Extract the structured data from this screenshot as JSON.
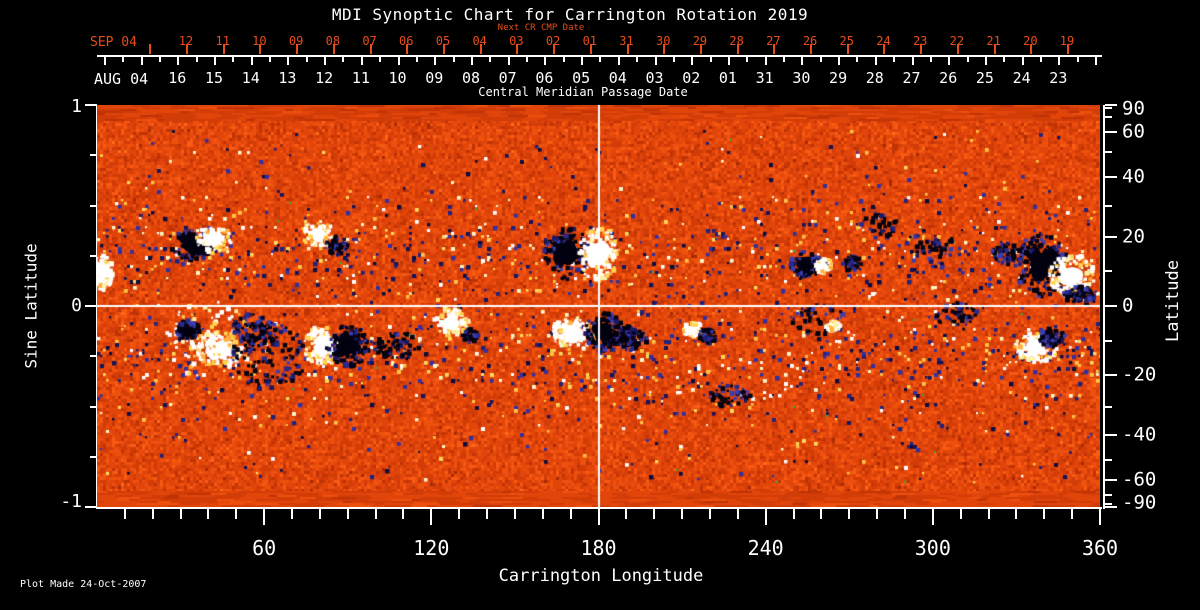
{
  "title": "MDI Synoptic Chart for Carrington Rotation 2019",
  "top_axis": {
    "next_cr_label": "Next CR CMP Date",
    "next_month_label": "SEP 04",
    "next_cr_dates": [
      "12",
      "11",
      "10",
      "09",
      "08",
      "07",
      "06",
      "05",
      "04",
      "03",
      "02",
      "01",
      "31",
      "30",
      "29",
      "28",
      "27",
      "26",
      "25",
      "24",
      "23",
      "22",
      "21",
      "20",
      "19"
    ],
    "current_month_label": "AUG 04",
    "cmp_dates": [
      "16",
      "15",
      "14",
      "13",
      "12",
      "11",
      "10",
      "09",
      "08",
      "07",
      "06",
      "05",
      "04",
      "03",
      "02",
      "01",
      "31",
      "30",
      "29",
      "28",
      "27",
      "26",
      "25",
      "24",
      "23"
    ],
    "caption": "Central Meridian Passage Date"
  },
  "left_axis": {
    "label": "Sine Latitude",
    "tick_labels": [
      "1",
      "0",
      "-1"
    ],
    "tick_values": [
      1,
      0,
      -1
    ],
    "minor_values": [
      0.75,
      0.5,
      0.25,
      -0.25,
      -0.5,
      -0.75
    ]
  },
  "right_axis": {
    "label": "Latitude",
    "tick_labels": [
      "90",
      "60",
      "40",
      "20",
      "0",
      "-20",
      "-40",
      "-60",
      "-90"
    ],
    "tick_values": [
      90,
      60,
      40,
      20,
      0,
      -20,
      -40,
      -60,
      -90
    ],
    "minor_values": [
      80,
      70,
      50,
      30,
      10,
      -10,
      -30,
      -50,
      -70,
      -80
    ]
  },
  "bottom_axis": {
    "label": "Carrington Longitude",
    "tick_labels": [
      "60",
      "120",
      "180",
      "240",
      "300",
      "360"
    ],
    "tick_values": [
      60,
      120,
      180,
      240,
      300,
      360
    ],
    "minor_step_deg": 10
  },
  "footer": "Plot Made 24-Oct-2007",
  "colors": {
    "background": "#000000",
    "axis": "#ffffff",
    "next_cr_axis": "#e84d1a",
    "grid_line": "#ffffff",
    "quiet_sun_base": "#e1450a",
    "negative_polarity": "#1a1a66",
    "positive_polarity": "#ffffff"
  },
  "chart_data": {
    "type": "heatmap",
    "title": "MDI Synoptic Chart for Carrington Rotation 2019",
    "xlabel": "Carrington Longitude",
    "ylabel_left": "Sine Latitude",
    "ylabel_right": "Latitude",
    "xlim": [
      0,
      360
    ],
    "ylim_sine_latitude": [
      -1,
      1
    ],
    "ylim_latitude": [
      -90,
      90
    ],
    "grid_lines": {
      "longitude_deg": 180,
      "sine_latitude": 0
    },
    "colormap": "quiet sun mottled orange-red; negative magnetic polarity dark navy/black; positive polarity white with yellow fringe; streaky smooth orange at poles",
    "active_regions": [
      {
        "lon_deg": 34,
        "sin_lat": 0.3,
        "rlon_deg": 5.4,
        "rsin": 0.065,
        "polarity": "negative",
        "intensity": 0.65,
        "form": "blob"
      },
      {
        "lon_deg": 42,
        "sin_lat": 0.33,
        "rlon_deg": 4.7,
        "rsin": 0.05,
        "polarity": "positive",
        "intensity": 0.55,
        "form": "blob"
      },
      {
        "lon_deg": 79,
        "sin_lat": 0.36,
        "rlon_deg": 4.3,
        "rsin": 0.045,
        "polarity": "positive",
        "intensity": 0.45,
        "form": "blob"
      },
      {
        "lon_deg": 86,
        "sin_lat": 0.3,
        "rlon_deg": 3.0,
        "rsin": 0.035,
        "polarity": "negative",
        "intensity": 0.35,
        "form": "speckle"
      },
      {
        "lon_deg": 169,
        "sin_lat": 0.26,
        "rlon_deg": 6.5,
        "rsin": 0.095,
        "polarity": "negative",
        "intensity": 0.75,
        "form": "blob"
      },
      {
        "lon_deg": 180,
        "sin_lat": 0.26,
        "rlon_deg": 5.5,
        "rsin": 0.1,
        "polarity": "positive",
        "intensity": 0.8,
        "form": "blob"
      },
      {
        "lon_deg": 254,
        "sin_lat": 0.2,
        "rlon_deg": 4.0,
        "rsin": 0.05,
        "polarity": "negative",
        "intensity": 0.55,
        "form": "blob"
      },
      {
        "lon_deg": 261,
        "sin_lat": 0.2,
        "rlon_deg": 2.2,
        "rsin": 0.027,
        "polarity": "positive",
        "intensity": 0.35,
        "form": "blob"
      },
      {
        "lon_deg": 271,
        "sin_lat": 0.21,
        "rlon_deg": 2.5,
        "rsin": 0.03,
        "polarity": "negative",
        "intensity": 0.3,
        "form": "speckle"
      },
      {
        "lon_deg": 281,
        "sin_lat": 0.4,
        "rlon_deg": 5.0,
        "rsin": 0.05,
        "polarity": "negative",
        "intensity": 0.2,
        "form": "speckle"
      },
      {
        "lon_deg": 299,
        "sin_lat": 0.29,
        "rlon_deg": 7.0,
        "rsin": 0.06,
        "polarity": "negative",
        "intensity": 0.25,
        "form": "speckle"
      },
      {
        "lon_deg": 327,
        "sin_lat": 0.26,
        "rlon_deg": 4.5,
        "rsin": 0.04,
        "polarity": "negative",
        "intensity": 0.4,
        "form": "speckle"
      },
      {
        "lon_deg": 339,
        "sin_lat": 0.2,
        "rlon_deg": 7.0,
        "rsin": 0.115,
        "polarity": "negative",
        "intensity": 0.9,
        "form": "blob"
      },
      {
        "lon_deg": 350,
        "sin_lat": 0.15,
        "rlon_deg": 6.0,
        "rsin": 0.08,
        "polarity": "positive",
        "intensity": 0.95,
        "form": "blob"
      },
      {
        "lon_deg": 353,
        "sin_lat": 0.05,
        "rlon_deg": 4.5,
        "rsin": 0.035,
        "polarity": "negative",
        "intensity": 0.45,
        "form": "speckle"
      },
      {
        "lon_deg": 2,
        "sin_lat": 0.17,
        "rlon_deg": 2.9,
        "rsin": 0.07,
        "polarity": "positive",
        "intensity": 0.55,
        "form": "blob"
      },
      {
        "lon_deg": 44,
        "sin_lat": -0.22,
        "rlon_deg": 6.0,
        "rsin": 0.07,
        "polarity": "positive",
        "intensity": 0.85,
        "form": "blob"
      },
      {
        "lon_deg": 40,
        "sin_lat": -0.17,
        "rlon_deg": 12.0,
        "rsin": 0.14,
        "polarity": "positive",
        "intensity": 0.45,
        "form": "speckle"
      },
      {
        "lon_deg": 33,
        "sin_lat": -0.12,
        "rlon_deg": 3.2,
        "rsin": 0.035,
        "polarity": "negative",
        "intensity": 0.55,
        "form": "blob"
      },
      {
        "lon_deg": 62,
        "sin_lat": -0.25,
        "rlon_deg": 10.0,
        "rsin": 0.13,
        "polarity": "negative",
        "intensity": 0.8,
        "form": "speckle"
      },
      {
        "lon_deg": 56,
        "sin_lat": -0.12,
        "rlon_deg": 6.0,
        "rsin": 0.06,
        "polarity": "negative",
        "intensity": 0.5,
        "form": "speckle"
      },
      {
        "lon_deg": 81,
        "sin_lat": -0.2,
        "rlon_deg": 5.0,
        "rsin": 0.075,
        "polarity": "positive",
        "intensity": 0.9,
        "form": "blob"
      },
      {
        "lon_deg": 90,
        "sin_lat": -0.2,
        "rlon_deg": 5.7,
        "rsin": 0.075,
        "polarity": "negative",
        "intensity": 0.9,
        "form": "blob"
      },
      {
        "lon_deg": 108,
        "sin_lat": -0.2,
        "rlon_deg": 6.5,
        "rsin": 0.05,
        "polarity": "negative",
        "intensity": 0.4,
        "form": "speckle"
      },
      {
        "lon_deg": 127,
        "sin_lat": -0.08,
        "rlon_deg": 4.7,
        "rsin": 0.05,
        "polarity": "positive",
        "intensity": 0.6,
        "form": "blob"
      },
      {
        "lon_deg": 134,
        "sin_lat": -0.15,
        "rlon_deg": 2.2,
        "rsin": 0.025,
        "polarity": "negative",
        "intensity": 0.3,
        "form": "speckle"
      },
      {
        "lon_deg": 171,
        "sin_lat": -0.14,
        "rlon_deg": 6.0,
        "rsin": 0.06,
        "polarity": "positive",
        "intensity": 0.8,
        "form": "blob"
      },
      {
        "lon_deg": 182,
        "sin_lat": -0.13,
        "rlon_deg": 5.0,
        "rsin": 0.075,
        "polarity": "negative",
        "intensity": 0.85,
        "form": "blob"
      },
      {
        "lon_deg": 189,
        "sin_lat": -0.15,
        "rlon_deg": 3.5,
        "rsin": 0.045,
        "polarity": "negative",
        "intensity": 0.4,
        "form": "speckle"
      },
      {
        "lon_deg": 193,
        "sin_lat": -0.17,
        "rlon_deg": 3.6,
        "rsin": 0.04,
        "polarity": "negative",
        "intensity": 0.35,
        "form": "speckle"
      },
      {
        "lon_deg": 214,
        "sin_lat": -0.12,
        "rlon_deg": 2.5,
        "rsin": 0.03,
        "polarity": "positive",
        "intensity": 0.35,
        "form": "blob"
      },
      {
        "lon_deg": 219,
        "sin_lat": -0.15,
        "rlon_deg": 2.5,
        "rsin": 0.03,
        "polarity": "negative",
        "intensity": 0.35,
        "form": "speckle"
      },
      {
        "lon_deg": 227,
        "sin_lat": -0.45,
        "rlon_deg": 5.7,
        "rsin": 0.04,
        "polarity": "negative",
        "intensity": 0.25,
        "form": "speckle"
      },
      {
        "lon_deg": 259,
        "sin_lat": -0.07,
        "rlon_deg": 7.0,
        "rsin": 0.06,
        "polarity": "negative",
        "intensity": 0.3,
        "form": "speckle"
      },
      {
        "lon_deg": 264,
        "sin_lat": -0.1,
        "rlon_deg": 2.0,
        "rsin": 0.02,
        "polarity": "positive",
        "intensity": 0.2,
        "form": "speckle"
      },
      {
        "lon_deg": 309,
        "sin_lat": -0.05,
        "rlon_deg": 5.7,
        "rsin": 0.05,
        "polarity": "negative",
        "intensity": 0.3,
        "form": "speckle"
      },
      {
        "lon_deg": 337,
        "sin_lat": -0.21,
        "rlon_deg": 5.7,
        "rsin": 0.055,
        "polarity": "positive",
        "intensity": 0.8,
        "form": "blob"
      },
      {
        "lon_deg": 343,
        "sin_lat": -0.16,
        "rlon_deg": 3.6,
        "rsin": 0.035,
        "polarity": "negative",
        "intensity": 0.45,
        "form": "speckle"
      }
    ]
  }
}
